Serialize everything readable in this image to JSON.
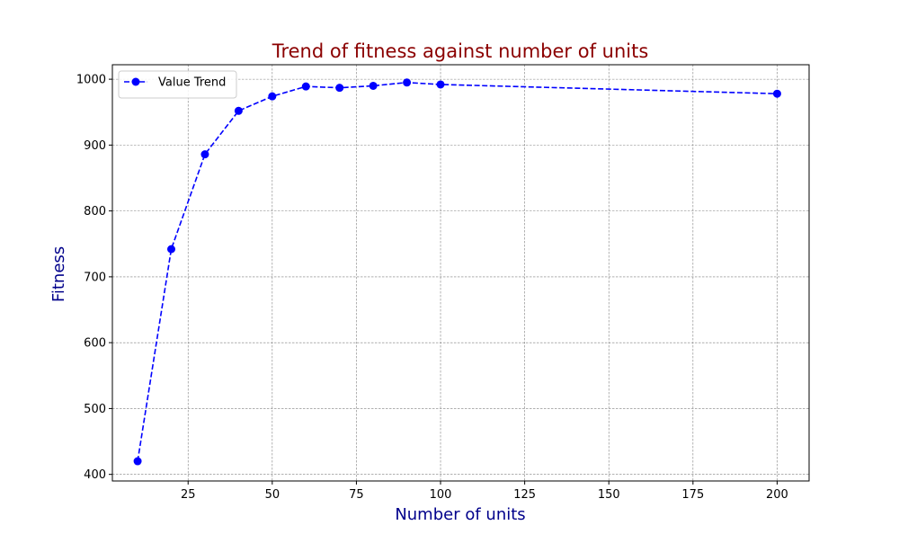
{
  "chart_data": {
    "type": "line",
    "title": "Trend of fitness against number of units",
    "xlabel": "Number of units",
    "ylabel": "Fitness",
    "xlim": [
      2.5,
      209.5
    ],
    "ylim": [
      390,
      1022
    ],
    "xticks": [
      25,
      50,
      75,
      100,
      125,
      150,
      175,
      200
    ],
    "yticks": [
      400,
      500,
      600,
      700,
      800,
      900,
      1000
    ],
    "grid": true,
    "legend_position": "top-left",
    "series": [
      {
        "name": "Value Trend",
        "color": "#0000ff",
        "line_style": "dashed",
        "marker": "circle",
        "x": [
          10,
          20,
          30,
          40,
          50,
          60,
          70,
          80,
          90,
          100,
          200
        ],
        "y": [
          420,
          742,
          886,
          952,
          974,
          989,
          987,
          990,
          995,
          992,
          978
        ]
      }
    ],
    "colors": {
      "title": "#8b0000",
      "axis_label": "#00008b",
      "grid": "#808080"
    }
  }
}
